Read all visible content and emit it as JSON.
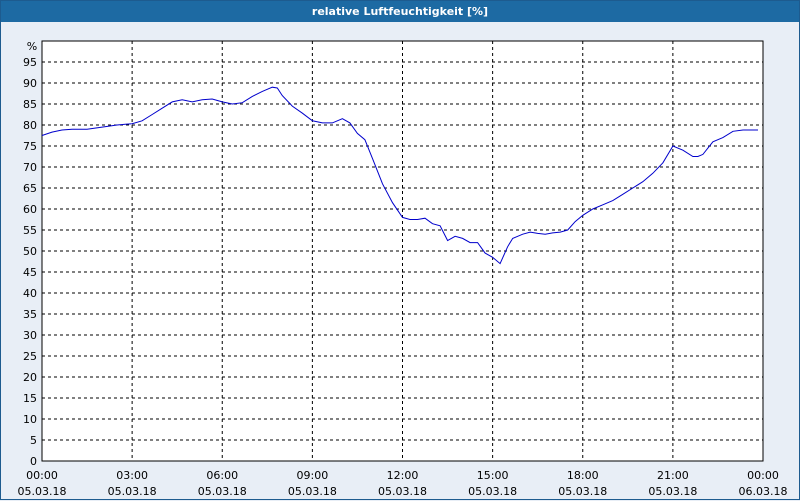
{
  "window": {
    "title": "relative Luftfeuchtigkeit [%]"
  },
  "colors": {
    "titlebar": "#1d6aa3",
    "background": "#e8eef6",
    "plot_bg": "#ffffff",
    "line": "#0000cc",
    "grid": "#000000"
  },
  "chart_data": {
    "type": "line",
    "title": "relative Luftfeuchtigkeit [%]",
    "ylabel": "%",
    "xlabel": "",
    "ylim": [
      0,
      100
    ],
    "xlim": [
      "05.03.18 00:00",
      "06.03.18 00:00"
    ],
    "grid": true,
    "y_ticks": [
      "0",
      "5",
      "10",
      "15",
      "20",
      "25",
      "30",
      "35",
      "40",
      "45",
      "50",
      "55",
      "60",
      "65",
      "70",
      "75",
      "80",
      "85",
      "90",
      "95"
    ],
    "x_ticks": [
      {
        "time": "00:00",
        "date": "05.03.18"
      },
      {
        "time": "03:00",
        "date": "05.03.18"
      },
      {
        "time": "06:00",
        "date": "05.03.18"
      },
      {
        "time": "09:00",
        "date": "05.03.18"
      },
      {
        "time": "12:00",
        "date": "05.03.18"
      },
      {
        "time": "15:00",
        "date": "05.03.18"
      },
      {
        "time": "18:00",
        "date": "05.03.18"
      },
      {
        "time": "21:00",
        "date": "05.03.18"
      },
      {
        "time": "00:00",
        "date": "06.03.18"
      }
    ],
    "series": [
      {
        "x": [
          "00:00",
          "00:20",
          "00:40",
          "01:00",
          "01:30",
          "02:00",
          "02:30",
          "03:00",
          "03:20",
          "03:40",
          "04:00",
          "04:20",
          "04:40",
          "05:00",
          "05:20",
          "05:40",
          "06:00",
          "06:20",
          "06:40",
          "07:00",
          "07:20",
          "07:40",
          "07:50",
          "08:00",
          "08:20",
          "08:40",
          "09:00",
          "09:20",
          "09:40",
          "10:00",
          "10:15",
          "10:30",
          "10:45",
          "11:00",
          "11:20",
          "11:40",
          "12:00",
          "12:15",
          "12:30",
          "12:45",
          "13:00",
          "13:15",
          "13:30",
          "13:45",
          "14:00",
          "14:15",
          "14:30",
          "14:45",
          "15:00",
          "15:15",
          "15:30",
          "15:40",
          "15:50",
          "16:00",
          "16:15",
          "16:30",
          "16:45",
          "17:00",
          "17:15",
          "17:30",
          "17:45",
          "18:00",
          "18:20",
          "18:40",
          "19:00",
          "19:20",
          "19:40",
          "20:00",
          "20:20",
          "20:40",
          "21:00",
          "21:20",
          "21:40",
          "21:50",
          "22:00",
          "22:10",
          "22:20",
          "22:40",
          "23:00",
          "23:20",
          "23:40",
          "23:50"
        ],
        "y": [
          77.5,
          78.3,
          78.8,
          79,
          79,
          79.5,
          80,
          80.3,
          81,
          82.5,
          84,
          85.5,
          86,
          85.5,
          86,
          86.2,
          85.5,
          85,
          85.3,
          86.8,
          88,
          89,
          88.8,
          87,
          84.5,
          82.8,
          81,
          80.5,
          80.5,
          81.5,
          80.5,
          78,
          76.5,
          72,
          66,
          61.5,
          58,
          57.5,
          57.5,
          57.8,
          56.5,
          56,
          52.5,
          53.5,
          53,
          52,
          52,
          49.5,
          48.5,
          47,
          51,
          53,
          53.5,
          54,
          54.5,
          54.2,
          54,
          54.3,
          54.5,
          55,
          57,
          58.5,
          60,
          61,
          62,
          63.5,
          65,
          66.5,
          68.5,
          71,
          75,
          74,
          72.5,
          72.5,
          73,
          74.5,
          76,
          77,
          78.5,
          78.8,
          78.8,
          78.8
        ]
      }
    ]
  }
}
